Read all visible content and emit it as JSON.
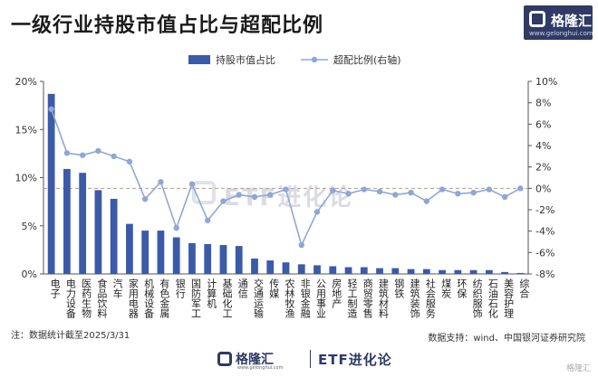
{
  "title": "一级行业持股市值占比与超配比例",
  "brand": {
    "logo_text": "格隆汇",
    "logo_url": "www.gelonghui.com",
    "bottom_right_watermark": "格隆汇"
  },
  "watermark": {
    "center_brand": "格隆汇",
    "center_text": "ETF进化论"
  },
  "bottom_brand": {
    "name": "格隆汇",
    "url": "www.gelonghui.com",
    "column": "ETF进化论"
  },
  "footnote": "注：数据统计截至2025/3/31",
  "source": "数据支持：wind、中国银河证券研究院",
  "colors": {
    "bar": "#3b5aa8",
    "line": "#8fa7d6",
    "zero_line": "#c49a7a",
    "axis_text": "#333333"
  },
  "chart_data": {
    "type": "bar",
    "categories": [
      "电子",
      "电力设备",
      "医药生物",
      "食品饮料",
      "汽车",
      "家用电器",
      "机械设备",
      "有色金属",
      "银行",
      "国防军工",
      "计算机",
      "基础化工",
      "通信",
      "交通运输",
      "传媒",
      "农林牧渔",
      "非银金融",
      "公用事业",
      "房地产",
      "轻工制造",
      "商贸零售",
      "建筑材料",
      "钢铁",
      "建筑装饰",
      "社会服务",
      "煤炭",
      "环保",
      "纺织服饰",
      "石油石化",
      "美容护理",
      "综合"
    ],
    "series": [
      {
        "name": "持股市值占比",
        "type": "bar",
        "axis": "left",
        "values": [
          18.7,
          10.9,
          10.5,
          8.7,
          7.8,
          5.2,
          4.5,
          4.5,
          3.8,
          3.2,
          3.1,
          3.0,
          2.9,
          1.6,
          1.4,
          1.2,
          1.0,
          0.9,
          0.8,
          0.7,
          0.7,
          0.6,
          0.6,
          0.5,
          0.5,
          0.4,
          0.4,
          0.4,
          0.4,
          0.2,
          0.1
        ]
      },
      {
        "name": "超配比例(右轴)",
        "type": "line",
        "axis": "right",
        "values": [
          7.4,
          3.3,
          3.1,
          3.5,
          3.0,
          2.5,
          -1.0,
          0.6,
          -3.7,
          0.4,
          -3.0,
          -1.2,
          -0.6,
          -0.8,
          -0.6,
          -0.1,
          -5.3,
          -2.2,
          -0.2,
          -0.5,
          -0.1,
          -0.3,
          -0.6,
          -0.4,
          -1.2,
          -0.1,
          -0.5,
          -0.4,
          -0.1,
          -0.8,
          0.0
        ]
      }
    ],
    "y_left": {
      "min": 0,
      "max": 20,
      "ticks": [
        0,
        5,
        10,
        15,
        20
      ],
      "tick_labels": [
        "0%",
        "5%",
        "10%",
        "15%",
        "20%"
      ]
    },
    "y_right": {
      "min": -8,
      "max": 10,
      "ticks": [
        -8,
        -6,
        -4,
        -2,
        0,
        2,
        4,
        6,
        8,
        10
      ],
      "tick_labels": [
        "-8%",
        "-6%",
        "-4%",
        "-2%",
        "0%",
        "2%",
        "4%",
        "6%",
        "8%",
        "10%"
      ]
    },
    "legend": {
      "position": "top-center"
    },
    "grid": false
  }
}
